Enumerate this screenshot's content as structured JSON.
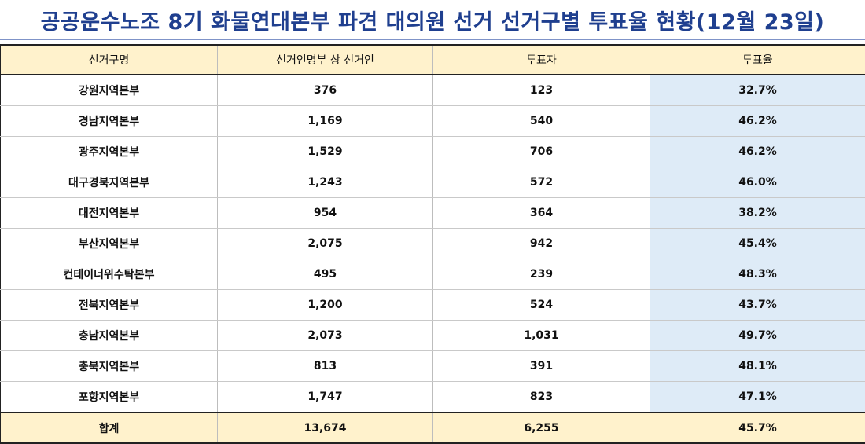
{
  "title": "공공운수노조 8기 화물연대본부 파견 대의원 선거 선거구별 투표율 현황(12월 23일)",
  "table": {
    "headers": [
      "선거구명",
      "선거인명부 상 선거인",
      "투표자",
      "투표율"
    ],
    "rows": [
      {
        "district": "강원지역본부",
        "voters": "376",
        "voted": "123",
        "rate": "32.7%"
      },
      {
        "district": "경남지역본부",
        "voters": "1,169",
        "voted": "540",
        "rate": "46.2%"
      },
      {
        "district": "광주지역본부",
        "voters": "1,529",
        "voted": "706",
        "rate": "46.2%"
      },
      {
        "district": "대구경북지역본부",
        "voters": "1,243",
        "voted": "572",
        "rate": "46.0%"
      },
      {
        "district": "대전지역본부",
        "voters": "954",
        "voted": "364",
        "rate": "38.2%"
      },
      {
        "district": "부산지역본부",
        "voters": "2,075",
        "voted": "942",
        "rate": "45.4%"
      },
      {
        "district": "컨테이너위수탁본부",
        "voters": "495",
        "voted": "239",
        "rate": "48.3%"
      },
      {
        "district": "전북지역본부",
        "voters": "1,200",
        "voted": "524",
        "rate": "43.7%"
      },
      {
        "district": "충남지역본부",
        "voters": "2,073",
        "voted": "1,031",
        "rate": "49.7%"
      },
      {
        "district": "충북지역본부",
        "voters": "813",
        "voted": "391",
        "rate": "48.1%"
      },
      {
        "district": "포항지역본부",
        "voters": "1,747",
        "voted": "823",
        "rate": "47.1%"
      }
    ],
    "total": {
      "label": "합계",
      "voters": "13,674",
      "voted": "6,255",
      "rate": "45.7%"
    }
  },
  "colors": {
    "title": "#1f3f8f",
    "header_fill": "#fff2cc",
    "rate_column_fill": "#deebf7",
    "border": "#222222"
  }
}
